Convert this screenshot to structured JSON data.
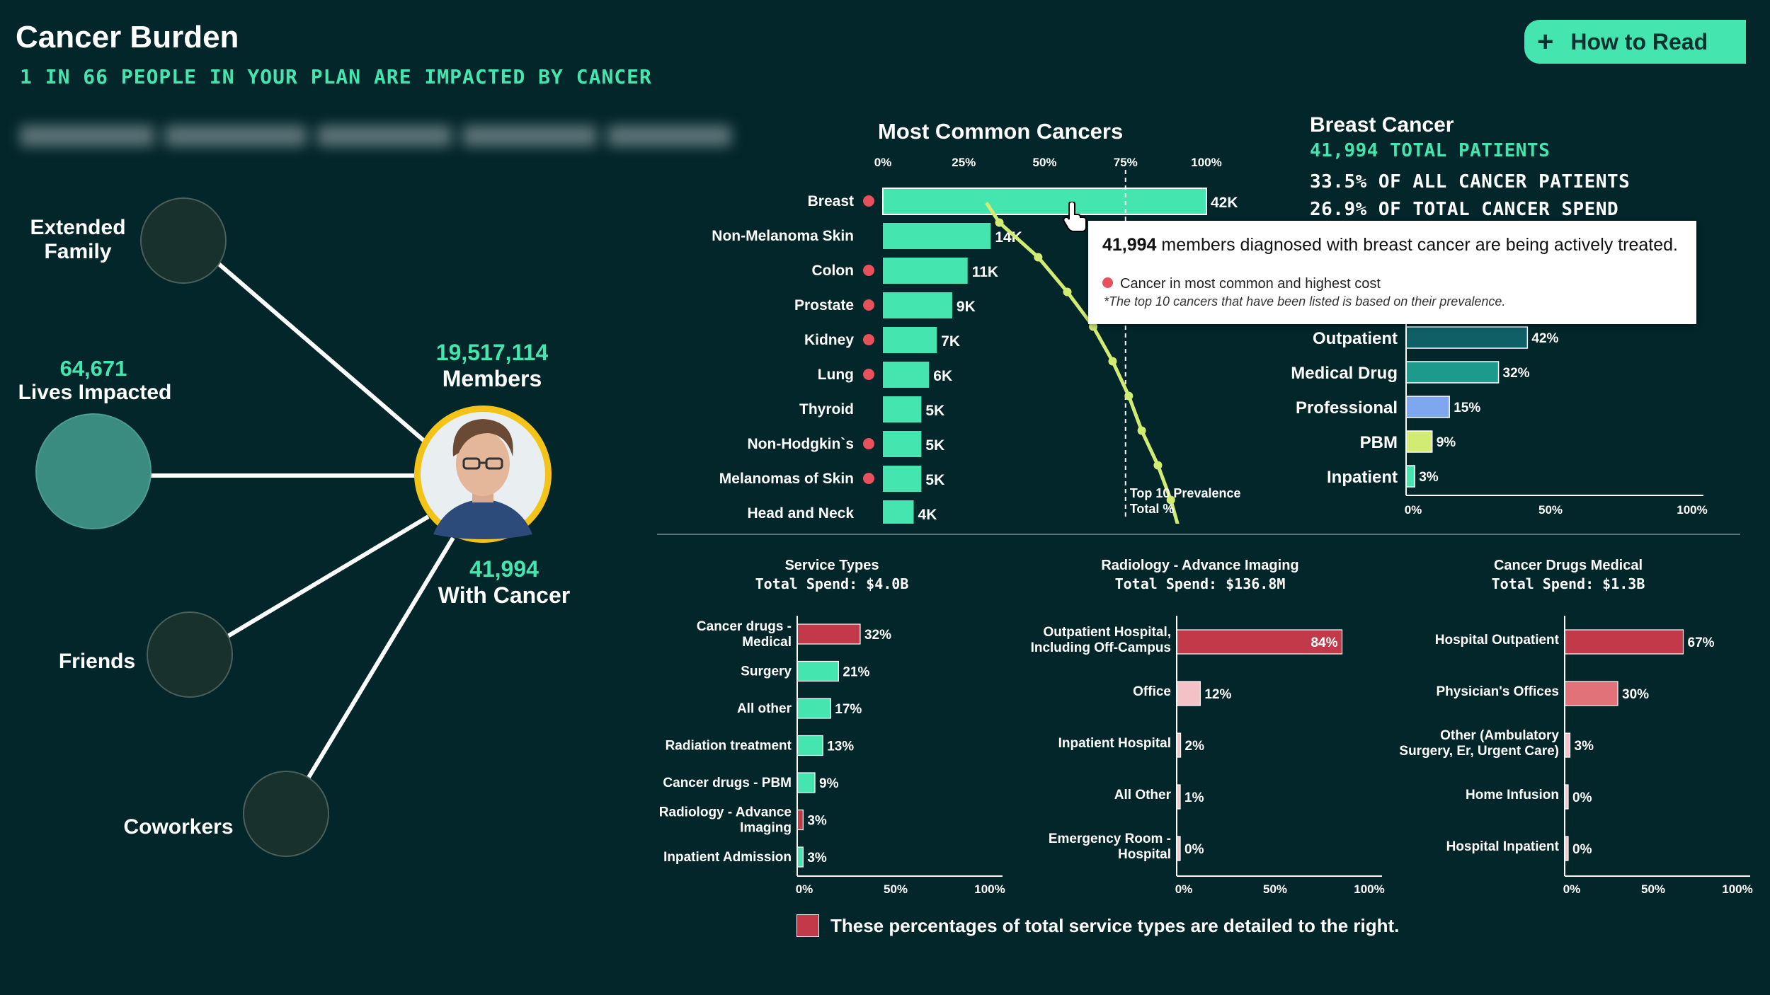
{
  "header": {
    "title": "Cancer Burden",
    "subtitle": "1 IN 66 PEOPLE IN YOUR PLAN ARE IMPACTED BY CANCER",
    "how_to_read": "How to Read"
  },
  "network": {
    "members_value": "19,517,114",
    "members_label": "Members",
    "with_cancer_value": "41,994",
    "with_cancer_label": "With Cancer",
    "lives_value": "64,671",
    "lives_label": "Lives Impacted",
    "extended_family": "Extended Family",
    "friends": "Friends",
    "coworkers": "Coworkers"
  },
  "most_common": {
    "title": "Most Common Cancers",
    "axis_ticks": [
      "0%",
      "25%",
      "50%",
      "75%",
      "100%"
    ],
    "cumulative_label_1": "Top 10 Prevalence",
    "cumulative_label_2": "Total %"
  },
  "breast": {
    "title": "Breast Cancer",
    "total_patients": "41,994 TOTAL PATIENTS",
    "share_patients": "33.5% OF ALL CANCER PATIENTS",
    "share_spend": "26.9% OF TOTAL CANCER SPEND",
    "axis_ticks": [
      "0%",
      "50%",
      "100%"
    ]
  },
  "tooltip": {
    "bold": "41,994",
    "text": " members diagnosed with breast cancer are being actively treated.",
    "legend": "Cancer in most common and highest cost",
    "footnote": "*The top 10 cancers that have been listed is based on their prevalence."
  },
  "service_types": {
    "title": "Service Types",
    "spend": "Total Spend: $4.0B",
    "axis_ticks": [
      "0%",
      "50%",
      "100%"
    ]
  },
  "radiology": {
    "title": "Radiology - Advance Imaging",
    "spend": "Total Spend:  $136.8M",
    "axis_ticks": [
      "0%",
      "50%",
      "100%"
    ]
  },
  "drugs": {
    "title": "Cancer Drugs Medical",
    "spend": "Total Spend: $1.3B",
    "axis_ticks": [
      "0%",
      "50%",
      "100%"
    ]
  },
  "footer_note": "These percentages of total service types are detailed to the right.",
  "colors": {
    "bg": "#03262a",
    "accent": "#45e5b0",
    "red": "#c23a49",
    "dot": "#e8505b",
    "curve": "#d2ec73",
    "teal_dark": "#0e5f66",
    "teal_mid": "#1c9a8c",
    "blue": "#7ea7f0",
    "lime": "#d2ec73",
    "pink_light": "#f4c1c6",
    "salmon": "#e2727a",
    "node": "#18312d",
    "node_big": "#3a8c80",
    "avatar_ring": "#f3c318"
  },
  "chart_data": [
    {
      "type": "bar",
      "orientation": "horizontal",
      "title": "Most Common Cancers",
      "categories": [
        "Breast",
        "Non-Melanoma Skin",
        "Colon",
        "Prostate",
        "Kidney",
        "Lung",
        "Thyroid",
        "Non-Hodgkin`s",
        "Melanomas of Skin",
        "Head and Neck"
      ],
      "values": [
        42,
        14,
        11,
        9,
        7,
        6,
        5,
        5,
        5,
        4
      ],
      "value_labels": [
        "42K",
        "14K",
        "11K",
        "9K",
        "7K",
        "6K",
        "5K",
        "5K",
        "5K",
        "4K"
      ],
      "highest_cost_flag": [
        true,
        false,
        true,
        true,
        true,
        true,
        false,
        true,
        true,
        false
      ],
      "cumulative_pct": [
        36,
        48,
        57,
        65,
        71,
        76,
        80,
        85,
        89,
        92
      ],
      "xlim_pct": [
        0,
        100
      ],
      "reference_line_pct": 75
    },
    {
      "type": "bar",
      "orientation": "horizontal",
      "title": "Breast Cancer spend by service",
      "categories": [
        "Outpatient",
        "Medical Drug",
        "Professional",
        "PBM",
        "Inpatient"
      ],
      "values": [
        42,
        32,
        15,
        9,
        3
      ],
      "value_labels": [
        "42%",
        "32%",
        "15%",
        "9%",
        "3%"
      ],
      "colors": [
        "#0e5f66",
        "#1c9a8c",
        "#7ea7f0",
        "#d2ec73",
        "#45e5b0"
      ],
      "xlim": [
        0,
        100
      ]
    },
    {
      "type": "bar",
      "orientation": "horizontal",
      "title": "Service Types",
      "categories": [
        "Cancer drugs - Medical",
        "Surgery",
        "All other",
        "Radiation treatment",
        "Cancer drugs - PBM",
        "Radiology - Advance Imaging",
        "Inpatient Admission"
      ],
      "values": [
        32,
        21,
        17,
        13,
        9,
        3,
        3
      ],
      "value_labels": [
        "32%",
        "21%",
        "17%",
        "13%",
        "9%",
        "3%",
        "3%"
      ],
      "highlight": [
        true,
        false,
        false,
        false,
        false,
        true,
        false
      ],
      "xlim": [
        0,
        100
      ]
    },
    {
      "type": "bar",
      "orientation": "horizontal",
      "title": "Radiology - Advance Imaging",
      "categories": [
        "Outpatient Hospital, Including Off-Campus",
        "Office",
        "Inpatient Hospital",
        "All Other",
        "Emergency Room - Hospital"
      ],
      "values": [
        84,
        12,
        2,
        1,
        0
      ],
      "value_labels": [
        "84%",
        "12%",
        "2%",
        "1%",
        "0%"
      ],
      "colors": [
        "#c23a49",
        "#f4c1c6",
        "#f4c1c6",
        "#f4c1c6",
        "#f4c1c6"
      ],
      "xlim": [
        0,
        100
      ]
    },
    {
      "type": "bar",
      "orientation": "horizontal",
      "title": "Cancer Drugs Medical",
      "categories": [
        "Hospital Outpatient",
        "Physician's Offices",
        "Other (Ambulatory Surgery, Er, Urgent Care)",
        "Home Infusion",
        "Hospital Inpatient"
      ],
      "values": [
        67,
        30,
        3,
        0,
        0
      ],
      "value_labels": [
        "67%",
        "30%",
        "3%",
        "0%",
        "0%"
      ],
      "colors": [
        "#c23a49",
        "#e2727a",
        "#f4c1c6",
        "#f4c1c6",
        "#f4c1c6"
      ],
      "xlim": [
        0,
        100
      ]
    }
  ]
}
